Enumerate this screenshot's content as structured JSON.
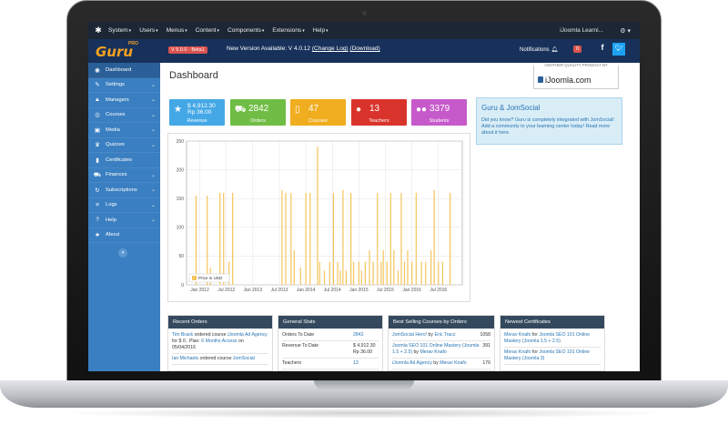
{
  "topbar": {
    "menus": [
      "System",
      "Users",
      "Menus",
      "Content",
      "Components",
      "Extensions",
      "Help"
    ],
    "site_name": "iJoomla Learni..."
  },
  "header": {
    "logo_text": "Guru",
    "logo_pro": "PRO",
    "version_badge": "V 5.0.0 - Beta1",
    "new_version_text": "New Version Available: V 4.0.12",
    "change_log": "(Change Log)",
    "download": "(Download)",
    "notifications_label": "Notifications",
    "notifications_count": "0"
  },
  "sidebar": {
    "items": [
      {
        "label": "Dashboard",
        "icon": "dashboard-icon",
        "glyph": "◉",
        "chevron": false,
        "active": true
      },
      {
        "label": "Settings",
        "icon": "wrench-icon",
        "glyph": "✎",
        "chevron": true,
        "active": false
      },
      {
        "label": "Managers",
        "icon": "person-icon",
        "glyph": "▲",
        "chevron": true,
        "active": false
      },
      {
        "label": "Courses",
        "icon": "eye-icon",
        "glyph": "◎",
        "chevron": true,
        "active": false
      },
      {
        "label": "Media",
        "icon": "image-icon",
        "glyph": "▣",
        "chevron": true,
        "active": false
      },
      {
        "label": "Quizzes",
        "icon": "graduation-cap-icon",
        "glyph": "♛",
        "chevron": true,
        "active": false
      },
      {
        "label": "Certificates",
        "icon": "bookmark-icon",
        "glyph": "▮",
        "chevron": false,
        "active": false
      },
      {
        "label": "Finances",
        "icon": "cart-icon",
        "glyph": "⛟",
        "chevron": true,
        "active": false
      },
      {
        "label": "Subscriptions",
        "icon": "cycle-icon",
        "glyph": "↻",
        "chevron": true,
        "active": false
      },
      {
        "label": "Logs",
        "icon": "list-icon",
        "glyph": "≡",
        "chevron": true,
        "active": false
      },
      {
        "label": "Help",
        "icon": "question-icon",
        "glyph": "?",
        "chevron": true,
        "active": false
      },
      {
        "label": "About",
        "icon": "star-icon",
        "glyph": "★",
        "chevron": false,
        "active": false
      }
    ]
  },
  "main": {
    "title": "Dashboard",
    "quality_text": "ANOTHER QUALITY PRODUCT BY",
    "quality_brand": "iJoomla.com",
    "tiles": [
      {
        "value_line1": "$ 4,912.30",
        "value_line2": "Rp 36.00",
        "label": "Revenue",
        "icon": "star-icon",
        "color": "#45a8e6"
      },
      {
        "value": "2842",
        "label": "Orders",
        "icon": "cart-icon",
        "color": "#6fbd44"
      },
      {
        "value": "47",
        "label": "Courses",
        "icon": "document-icon",
        "color": "#f0ad1f"
      },
      {
        "value": "13",
        "label": "Teachers",
        "icon": "user-icon",
        "color": "#d9342b"
      },
      {
        "value": "3379",
        "label": "Students",
        "icon": "users-icon",
        "color": "#c65acb"
      }
    ],
    "jomsocial": {
      "heading": "Guru & JomSocial",
      "text": "Did you know? Guru is completely integrated with JomSocial! Add a community to your learning center today! Read more about it here."
    }
  },
  "chart_data": {
    "type": "bar",
    "title": "",
    "legend": [
      "Price in USD"
    ],
    "legend_position": "bottom-left",
    "color": "#f5c45a",
    "ylim": [
      0,
      250
    ],
    "yticks": [
      0,
      50,
      100,
      150,
      200,
      250
    ],
    "xticks": [
      "Jan 2012",
      "Jul 2012",
      "Jan 2013",
      "Jul 2013",
      "Jan 2014",
      "Jul 2014",
      "Jan 2015",
      "Jul 2015",
      "Jan 2016",
      "Jul 2016"
    ],
    "grid": true,
    "spikes": [
      {
        "x": 2011.93,
        "y": 155
      },
      {
        "x": 2012.14,
        "y": 155
      },
      {
        "x": 2012.2,
        "y": 30
      },
      {
        "x": 2012.38,
        "y": 160
      },
      {
        "x": 2012.45,
        "y": 160
      },
      {
        "x": 2012.55,
        "y": 40
      },
      {
        "x": 2012.62,
        "y": 160
      },
      {
        "x": 2013.55,
        "y": 165
      },
      {
        "x": 2013.62,
        "y": 160
      },
      {
        "x": 2013.72,
        "y": 160
      },
      {
        "x": 2013.78,
        "y": 60
      },
      {
        "x": 2013.9,
        "y": 30
      },
      {
        "x": 2014.0,
        "y": 160
      },
      {
        "x": 2014.08,
        "y": 160
      },
      {
        "x": 2014.22,
        "y": 240
      },
      {
        "x": 2014.26,
        "y": 40
      },
      {
        "x": 2014.35,
        "y": 25
      },
      {
        "x": 2014.45,
        "y": 40
      },
      {
        "x": 2014.52,
        "y": 160
      },
      {
        "x": 2014.6,
        "y": 40
      },
      {
        "x": 2014.65,
        "y": 25
      },
      {
        "x": 2014.7,
        "y": 165
      },
      {
        "x": 2014.76,
        "y": 25
      },
      {
        "x": 2014.85,
        "y": 160
      },
      {
        "x": 2014.9,
        "y": 40
      },
      {
        "x": 2015.0,
        "y": 40
      },
      {
        "x": 2015.05,
        "y": 25
      },
      {
        "x": 2015.12,
        "y": 40
      },
      {
        "x": 2015.2,
        "y": 60
      },
      {
        "x": 2015.27,
        "y": 40
      },
      {
        "x": 2015.35,
        "y": 160
      },
      {
        "x": 2015.42,
        "y": 40
      },
      {
        "x": 2015.46,
        "y": 60
      },
      {
        "x": 2015.53,
        "y": 40
      },
      {
        "x": 2015.6,
        "y": 160
      },
      {
        "x": 2015.66,
        "y": 60
      },
      {
        "x": 2015.74,
        "y": 25
      },
      {
        "x": 2015.8,
        "y": 160
      },
      {
        "x": 2015.86,
        "y": 40
      },
      {
        "x": 2015.92,
        "y": 60
      },
      {
        "x": 2016.0,
        "y": 40
      },
      {
        "x": 2016.08,
        "y": 160
      },
      {
        "x": 2016.18,
        "y": 40
      },
      {
        "x": 2016.26,
        "y": 40
      },
      {
        "x": 2016.36,
        "y": 60
      },
      {
        "x": 2016.42,
        "y": 165
      },
      {
        "x": 2016.5,
        "y": 40
      },
      {
        "x": 2016.58,
        "y": 40
      },
      {
        "x": 2016.72,
        "y": 160
      }
    ]
  },
  "panels": {
    "recent_orders": {
      "heading": "Recent Orders",
      "entries": [
        {
          "name": "Tim Brack",
          "mid": " ordered course ",
          "course": "iJoomla Ad Agency",
          "prefix": " for $ 0 , Plan: ",
          "plan": "6 Months Access",
          "date": " on 05/04/2016"
        },
        {
          "name": "Ian Michaels",
          "mid": " ordered course ",
          "course": "JomSocial",
          "prefix": "",
          "plan": "",
          "date": ""
        }
      ]
    },
    "general_stats": {
      "heading": "General Stats",
      "rows": [
        {
          "label": "Orders To Date",
          "value": "2842"
        },
        {
          "label": "Revenue To Date",
          "value": "$ 4,912.30 Rp 36.00"
        },
        {
          "label": "Teachers",
          "value": "13"
        }
      ]
    },
    "best_selling": {
      "heading": "Best Selling Courses by Orders",
      "rows": [
        {
          "course": "JomSocial Hero!",
          "by": " by ",
          "author": "Eric Tracz",
          "count": "1058"
        },
        {
          "course": "Joomla SEO 101 Online Mastery (Joomla 1.5 + 2.5)",
          "by": " by ",
          "author": "Merav Knafo",
          "count": "391"
        },
        {
          "course": "iJoomla Ad Agency",
          "by": " by ",
          "author": "Merav Knafo",
          "count": "176"
        }
      ]
    },
    "newest_certificates": {
      "heading": "Newest Certificates",
      "rows": [
        {
          "name": "Merav Knafo",
          "mid": " for ",
          "course": "Joomla SEO 101 Online Mastery (Joomla 1.5 + 2.5)"
        },
        {
          "name": "Merav Knafo",
          "mid": " for ",
          "course": "Joomla SEO 101 Online Mastery (Joomla 3)"
        }
      ]
    }
  }
}
